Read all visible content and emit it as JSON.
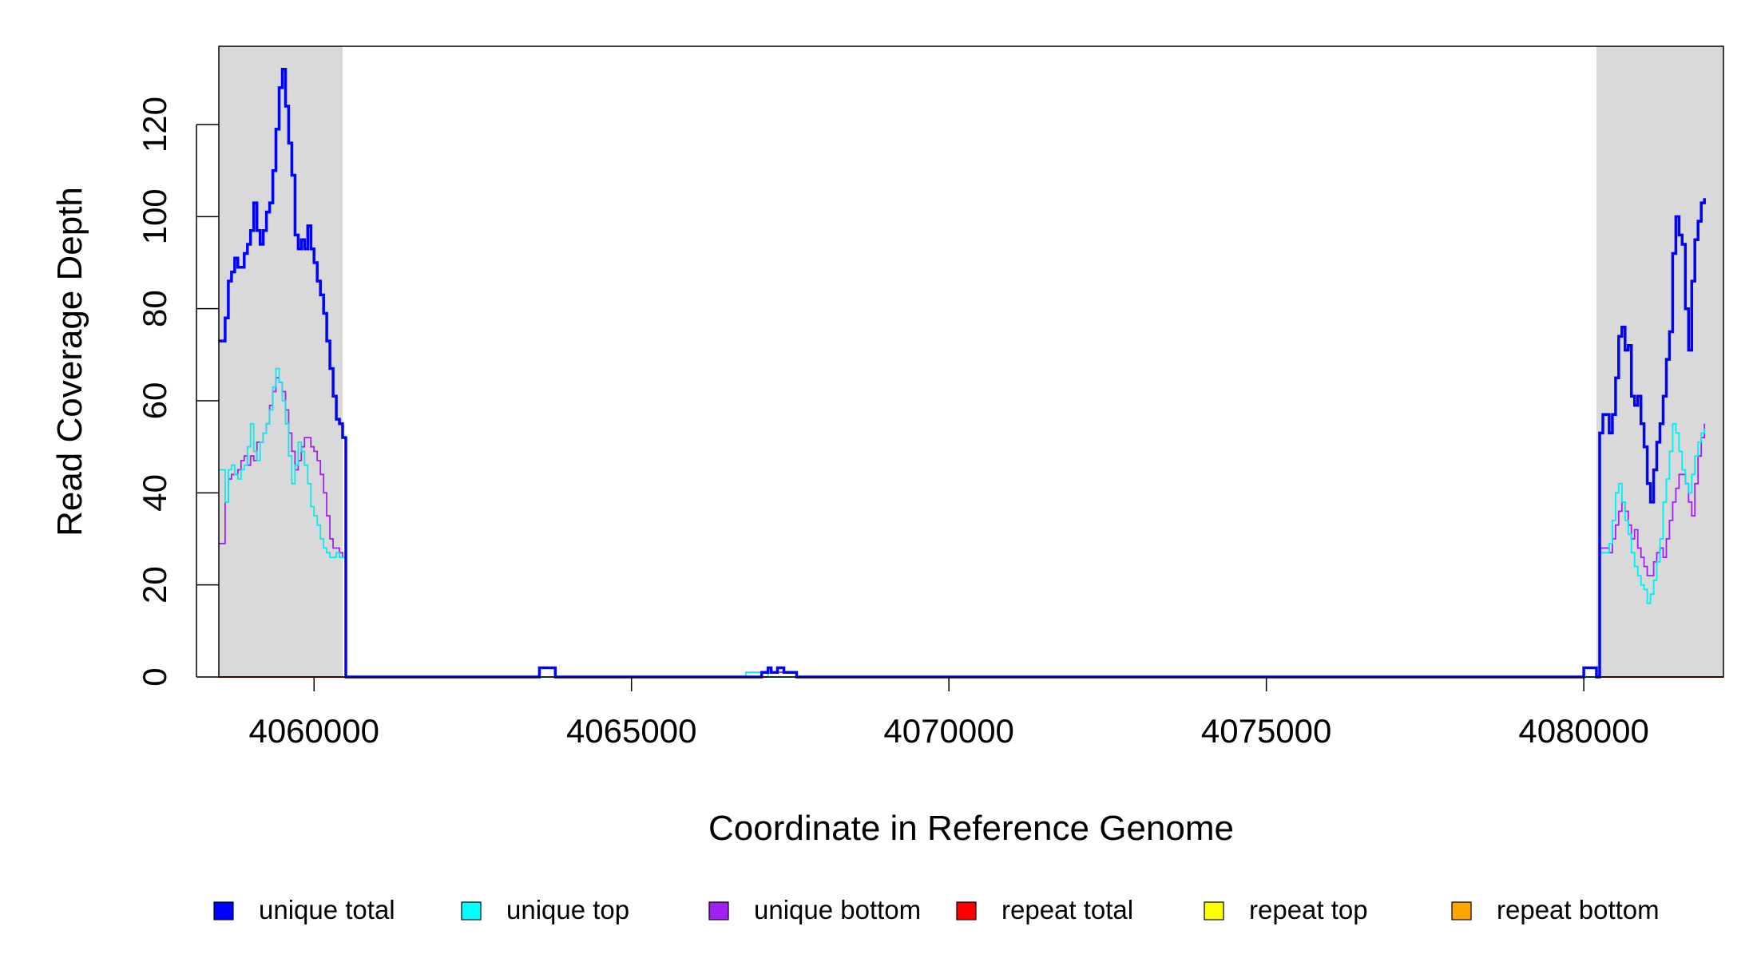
{
  "chart_data": {
    "type": "line",
    "xlabel": "Coordinate in Reference Genome",
    "ylabel": "Read Coverage Depth",
    "xlim": [
      4058500,
      4082200
    ],
    "ylim": [
      0,
      137
    ],
    "x_ticks": [
      4060000,
      4065000,
      4070000,
      4075000,
      4080000
    ],
    "x_tick_labels": [
      "4060000",
      "4065000",
      "4070000",
      "4075000",
      "4080000"
    ],
    "y_ticks": [
      0,
      20,
      40,
      60,
      80,
      100,
      120
    ],
    "y_tick_labels": [
      "0",
      "20",
      "40",
      "60",
      "80",
      "100",
      "120"
    ],
    "shaded_regions": [
      [
        4058500,
        4060450
      ],
      [
        4080200,
        4082200
      ]
    ],
    "shade_color": "#d9d9d9",
    "grid": false,
    "legend_position": "bottom",
    "series": [
      {
        "name": "unique total",
        "color": "#0000ff",
        "points": [
          [
            4058500,
            73
          ],
          [
            4058600,
            78
          ],
          [
            4058650,
            86
          ],
          [
            4058700,
            88
          ],
          [
            4058750,
            91
          ],
          [
            4058800,
            89
          ],
          [
            4058850,
            89
          ],
          [
            4058900,
            92
          ],
          [
            4058950,
            94
          ],
          [
            4059000,
            97
          ],
          [
            4059050,
            103
          ],
          [
            4059100,
            97
          ],
          [
            4059150,
            94
          ],
          [
            4059200,
            97
          ],
          [
            4059250,
            101
          ],
          [
            4059300,
            103
          ],
          [
            4059350,
            110
          ],
          [
            4059400,
            119
          ],
          [
            4059450,
            128
          ],
          [
            4059500,
            132
          ],
          [
            4059550,
            124
          ],
          [
            4059600,
            116
          ],
          [
            4059650,
            109
          ],
          [
            4059700,
            96
          ],
          [
            4059750,
            93
          ],
          [
            4059800,
            95
          ],
          [
            4059850,
            93
          ],
          [
            4059900,
            98
          ],
          [
            4059950,
            93
          ],
          [
            4060000,
            90
          ],
          [
            4060050,
            86
          ],
          [
            4060100,
            83
          ],
          [
            4060150,
            79
          ],
          [
            4060200,
            73
          ],
          [
            4060250,
            67
          ],
          [
            4060300,
            61
          ],
          [
            4060350,
            56
          ],
          [
            4060400,
            55
          ],
          [
            4060450,
            52
          ],
          [
            4060500,
            0
          ],
          [
            4063500,
            0
          ],
          [
            4063550,
            2
          ],
          [
            4063750,
            2
          ],
          [
            4063800,
            0
          ],
          [
            4067000,
            0
          ],
          [
            4067050,
            1
          ],
          [
            4067150,
            2
          ],
          [
            4067200,
            1
          ],
          [
            4067300,
            2
          ],
          [
            4067400,
            1
          ],
          [
            4067550,
            1
          ],
          [
            4067600,
            0
          ],
          [
            4079950,
            0
          ],
          [
            4080000,
            2
          ],
          [
            4080150,
            2
          ],
          [
            4080200,
            0
          ],
          [
            4080250,
            53
          ],
          [
            4080300,
            57
          ],
          [
            4080400,
            53
          ],
          [
            4080450,
            57
          ],
          [
            4080500,
            65
          ],
          [
            4080550,
            74
          ],
          [
            4080600,
            76
          ],
          [
            4080650,
            71
          ],
          [
            4080700,
            72
          ],
          [
            4080750,
            61
          ],
          [
            4080800,
            59
          ],
          [
            4080850,
            61
          ],
          [
            4080900,
            55
          ],
          [
            4080950,
            50
          ],
          [
            4081000,
            42
          ],
          [
            4081050,
            38
          ],
          [
            4081100,
            45
          ],
          [
            4081150,
            51
          ],
          [
            4081200,
            55
          ],
          [
            4081250,
            61
          ],
          [
            4081300,
            69
          ],
          [
            4081350,
            75
          ],
          [
            4081400,
            92
          ],
          [
            4081450,
            100
          ],
          [
            4081500,
            96
          ],
          [
            4081550,
            94
          ],
          [
            4081600,
            80
          ],
          [
            4081650,
            71
          ],
          [
            4081700,
            86
          ],
          [
            4081750,
            95
          ],
          [
            4081800,
            99
          ],
          [
            4081850,
            103
          ],
          [
            4081900,
            104
          ]
        ]
      },
      {
        "name": "unique top",
        "color": "#00eeee",
        "points": [
          [
            4058500,
            45
          ],
          [
            4058600,
            38
          ],
          [
            4058650,
            45
          ],
          [
            4058700,
            46
          ],
          [
            4058750,
            44
          ],
          [
            4058800,
            43
          ],
          [
            4058850,
            45
          ],
          [
            4058900,
            46
          ],
          [
            4058950,
            50
          ],
          [
            4059000,
            55
          ],
          [
            4059050,
            49
          ],
          [
            4059100,
            47
          ],
          [
            4059150,
            51
          ],
          [
            4059200,
            53
          ],
          [
            4059250,
            55
          ],
          [
            4059300,
            58
          ],
          [
            4059350,
            63
          ],
          [
            4059400,
            67
          ],
          [
            4059450,
            64
          ],
          [
            4059500,
            60
          ],
          [
            4059550,
            55
          ],
          [
            4059600,
            48
          ],
          [
            4059650,
            42
          ],
          [
            4059700,
            46
          ],
          [
            4059750,
            51
          ],
          [
            4059800,
            49
          ],
          [
            4059850,
            46
          ],
          [
            4059900,
            42
          ],
          [
            4059950,
            37
          ],
          [
            4060000,
            35
          ],
          [
            4060050,
            33
          ],
          [
            4060100,
            30
          ],
          [
            4060150,
            28
          ],
          [
            4060200,
            27
          ],
          [
            4060250,
            26
          ],
          [
            4060300,
            26
          ],
          [
            4060350,
            27
          ],
          [
            4060400,
            26
          ],
          [
            4060450,
            26
          ],
          [
            4060500,
            0
          ],
          [
            4066750,
            0
          ],
          [
            4066800,
            1
          ],
          [
            4067100,
            1
          ],
          [
            4067150,
            0
          ],
          [
            4080250,
            27
          ],
          [
            4080300,
            27
          ],
          [
            4080400,
            29
          ],
          [
            4080450,
            34
          ],
          [
            4080500,
            40
          ],
          [
            4080550,
            42
          ],
          [
            4080600,
            38
          ],
          [
            4080650,
            34
          ],
          [
            4080700,
            31
          ],
          [
            4080750,
            27
          ],
          [
            4080800,
            24
          ],
          [
            4080850,
            22
          ],
          [
            4080900,
            20
          ],
          [
            4080950,
            19
          ],
          [
            4081000,
            16
          ],
          [
            4081050,
            18
          ],
          [
            4081100,
            21
          ],
          [
            4081150,
            25
          ],
          [
            4081200,
            30
          ],
          [
            4081250,
            38
          ],
          [
            4081300,
            43
          ],
          [
            4081350,
            49
          ],
          [
            4081400,
            55
          ],
          [
            4081450,
            53
          ],
          [
            4081500,
            49
          ],
          [
            4081550,
            45
          ],
          [
            4081600,
            42
          ],
          [
            4081650,
            40
          ],
          [
            4081700,
            44
          ],
          [
            4081750,
            48
          ],
          [
            4081800,
            51
          ],
          [
            4081850,
            53
          ],
          [
            4081900,
            54
          ]
        ]
      },
      {
        "name": "unique bottom",
        "color": "#a020f0",
        "points": [
          [
            4058500,
            29
          ],
          [
            4058600,
            38
          ],
          [
            4058650,
            43
          ],
          [
            4058700,
            44
          ],
          [
            4058750,
            44
          ],
          [
            4058800,
            45
          ],
          [
            4058850,
            47
          ],
          [
            4058900,
            48
          ],
          [
            4058950,
            46
          ],
          [
            4059000,
            48
          ],
          [
            4059050,
            47
          ],
          [
            4059100,
            51
          ],
          [
            4059150,
            51
          ],
          [
            4059200,
            53
          ],
          [
            4059250,
            55
          ],
          [
            4059300,
            59
          ],
          [
            4059350,
            62
          ],
          [
            4059400,
            65
          ],
          [
            4059450,
            64
          ],
          [
            4059500,
            62
          ],
          [
            4059550,
            58
          ],
          [
            4059600,
            53
          ],
          [
            4059650,
            49
          ],
          [
            4059700,
            45
          ],
          [
            4059750,
            47
          ],
          [
            4059800,
            50
          ],
          [
            4059850,
            52
          ],
          [
            4059900,
            52
          ],
          [
            4059950,
            50
          ],
          [
            4060000,
            49
          ],
          [
            4060050,
            47
          ],
          [
            4060100,
            44
          ],
          [
            4060150,
            40
          ],
          [
            4060200,
            35
          ],
          [
            4060250,
            30
          ],
          [
            4060300,
            28
          ],
          [
            4060350,
            28
          ],
          [
            4060400,
            27
          ],
          [
            4060450,
            26
          ],
          [
            4060500,
            0
          ],
          [
            4063500,
            0
          ],
          [
            4063550,
            2
          ],
          [
            4063750,
            2
          ],
          [
            4063800,
            0
          ],
          [
            4067000,
            0
          ],
          [
            4067050,
            1
          ],
          [
            4067150,
            2
          ],
          [
            4067200,
            1
          ],
          [
            4067550,
            1
          ],
          [
            4067600,
            0
          ],
          [
            4079950,
            0
          ],
          [
            4080000,
            2
          ],
          [
            4080150,
            2
          ],
          [
            4080200,
            0
          ],
          [
            4080250,
            28
          ],
          [
            4080300,
            28
          ],
          [
            4080400,
            27
          ],
          [
            4080450,
            30
          ],
          [
            4080500,
            33
          ],
          [
            4080550,
            36
          ],
          [
            4080600,
            38
          ],
          [
            4080650,
            36
          ],
          [
            4080700,
            33
          ],
          [
            4080750,
            30
          ],
          [
            4080800,
            32
          ],
          [
            4080850,
            28
          ],
          [
            4080900,
            26
          ],
          [
            4080950,
            24
          ],
          [
            4081000,
            22
          ],
          [
            4081050,
            22
          ],
          [
            4081100,
            25
          ],
          [
            4081150,
            27
          ],
          [
            4081200,
            28
          ],
          [
            4081250,
            26
          ],
          [
            4081300,
            30
          ],
          [
            4081350,
            34
          ],
          [
            4081400,
            38
          ],
          [
            4081450,
            41
          ],
          [
            4081500,
            44
          ],
          [
            4081550,
            44
          ],
          [
            4081600,
            42
          ],
          [
            4081650,
            38
          ],
          [
            4081700,
            35
          ],
          [
            4081750,
            42
          ],
          [
            4081800,
            48
          ],
          [
            4081850,
            52
          ],
          [
            4081900,
            55
          ]
        ]
      },
      {
        "name": "repeat total",
        "color": "#ff0000",
        "points": [
          [
            4058500,
            0
          ],
          [
            4082200,
            0
          ]
        ]
      },
      {
        "name": "repeat top",
        "color": "#ffff00",
        "points": [
          [
            4058500,
            0
          ],
          [
            4082200,
            0
          ]
        ]
      },
      {
        "name": "repeat bottom",
        "color": "#ffa500",
        "points": [
          [
            4058500,
            0
          ],
          [
            4082200,
            0
          ]
        ]
      }
    ],
    "legend": [
      {
        "label": "unique total",
        "color": "#0000ff"
      },
      {
        "label": "unique top",
        "color": "#00ffff"
      },
      {
        "label": "unique bottom",
        "color": "#a020f0"
      },
      {
        "label": "repeat total",
        "color": "#ff0000"
      },
      {
        "label": "repeat top",
        "color": "#ffff00"
      },
      {
        "label": "repeat bottom",
        "color": "#ffa500"
      }
    ]
  }
}
